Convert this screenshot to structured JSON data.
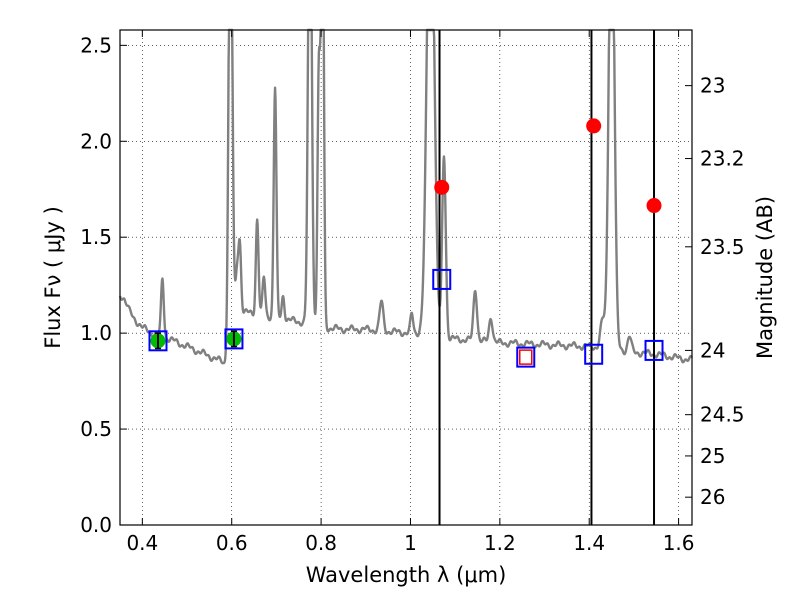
{
  "chart_data": {
    "type": "scatter",
    "xlabel": "Wavelength  λ (μm)",
    "ylabel": "Flux  Fν  ( μJy )",
    "y2label": "Magnitude (AB)",
    "xlim": [
      0.35,
      1.63
    ],
    "ylim": [
      0.0,
      2.58
    ],
    "grid": true,
    "x_ticks": [
      0.4,
      0.6,
      0.8,
      1.0,
      1.2,
      1.4,
      1.6
    ],
    "x_tick_labels": [
      "0.4",
      "0.6",
      "0.8",
      "1",
      "1.2",
      "1.4",
      "1.6"
    ],
    "y_ticks": [
      0.0,
      0.5,
      1.0,
      1.5,
      2.0,
      2.5
    ],
    "y_tick_labels": [
      "0.0",
      "0.5",
      "1.0",
      "1.5",
      "2.0",
      "2.5"
    ],
    "y2_ticks": [
      {
        "label": "23",
        "flux": 2.29
      },
      {
        "label": "23.2",
        "flux": 1.91
      },
      {
        "label": "23.5",
        "flux": 1.45
      },
      {
        "label": "24",
        "flux": 0.91
      },
      {
        "label": "24.5",
        "flux": 0.575
      },
      {
        "label": "25",
        "flux": 0.36
      },
      {
        "label": "26",
        "flux": 0.145
      }
    ],
    "vertical_lines": [
      1.065,
      1.405,
      1.545
    ],
    "colors": {
      "spectrum": "#808080",
      "detections": "#ff0000",
      "hst": "#00bb00",
      "model_box": "#0000ff",
      "highlight_box": "#ff0000",
      "vline": "#000000"
    },
    "series": [
      {
        "marker": "green-circle",
        "points": [
          {
            "x": 0.435,
            "y": 0.96,
            "yerr": 0.04
          },
          {
            "x": 0.605,
            "y": 0.97,
            "yerr": 0.04
          }
        ]
      },
      {
        "marker": "red-circle",
        "points": [
          {
            "x": 1.07,
            "y": 1.76
          },
          {
            "x": 1.41,
            "y": 2.08
          },
          {
            "x": 1.545,
            "y": 1.665
          }
        ]
      },
      {
        "marker": "blue-square",
        "points": [
          {
            "x": 0.435,
            "y": 0.96
          },
          {
            "x": 0.605,
            "y": 0.97
          },
          {
            "x": 1.07,
            "y": 1.28
          },
          {
            "x": 1.41,
            "y": 0.89
          },
          {
            "x": 1.545,
            "y": 0.91
          }
        ]
      },
      {
        "marker": "red-square-in-blue",
        "points": [
          {
            "x": 1.258,
            "y": 0.875
          }
        ]
      }
    ],
    "spectrum": {
      "continuum": [
        [
          0.35,
          1.2
        ],
        [
          0.36,
          1.18
        ],
        [
          0.37,
          1.12
        ],
        [
          0.38,
          1.08
        ],
        [
          0.4,
          1.03
        ],
        [
          0.42,
          1.0
        ],
        [
          0.45,
          0.98
        ],
        [
          0.5,
          0.93
        ],
        [
          0.55,
          0.88
        ],
        [
          0.58,
          0.85
        ],
        [
          0.59,
          0.82
        ],
        [
          0.595,
          0.86
        ],
        [
          0.6,
          1.1
        ],
        [
          0.61,
          1.12
        ],
        [
          0.65,
          1.1
        ],
        [
          0.7,
          1.08
        ],
        [
          0.75,
          1.06
        ],
        [
          0.77,
          1.05
        ],
        [
          0.8,
          1.03
        ],
        [
          0.85,
          1.02
        ],
        [
          0.9,
          1.02
        ],
        [
          0.95,
          1.01
        ],
        [
          1.0,
          1.0
        ],
        [
          1.03,
          1.0
        ],
        [
          1.06,
          0.98
        ],
        [
          1.1,
          0.97
        ],
        [
          1.2,
          0.95
        ],
        [
          1.3,
          0.94
        ],
        [
          1.4,
          0.93
        ],
        [
          1.45,
          0.92
        ],
        [
          1.5,
          0.9
        ],
        [
          1.55,
          0.89
        ],
        [
          1.6,
          0.87
        ],
        [
          1.63,
          0.86
        ]
      ],
      "lines": [
        {
          "x": 0.445,
          "w": 0.003,
          "h": 0.3
        },
        {
          "x": 0.597,
          "w": 0.004,
          "h": 2.6
        },
        {
          "x": 0.612,
          "w": 0.003,
          "h": 0.2
        },
        {
          "x": 0.618,
          "w": 0.003,
          "h": 0.35
        },
        {
          "x": 0.657,
          "w": 0.003,
          "h": 0.5
        },
        {
          "x": 0.672,
          "w": 0.003,
          "h": 0.2
        },
        {
          "x": 0.697,
          "w": 0.003,
          "h": 1.2
        },
        {
          "x": 0.715,
          "w": 0.003,
          "h": 0.12
        },
        {
          "x": 0.775,
          "w": 0.004,
          "h": 2.6
        },
        {
          "x": 0.795,
          "w": 0.003,
          "h": 1.35
        },
        {
          "x": 0.803,
          "w": 0.003,
          "h": 2.6
        },
        {
          "x": 0.935,
          "w": 0.004,
          "h": 0.15
        },
        {
          "x": 1.003,
          "w": 0.003,
          "h": 0.1
        },
        {
          "x": 1.045,
          "w": 0.008,
          "h": 2.6
        },
        {
          "x": 1.075,
          "w": 0.004,
          "h": 0.95
        },
        {
          "x": 1.145,
          "w": 0.004,
          "h": 0.27
        },
        {
          "x": 1.18,
          "w": 0.004,
          "h": 0.13
        },
        {
          "x": 1.43,
          "w": 0.005,
          "h": 0.14
        },
        {
          "x": 1.45,
          "w": 0.006,
          "h": 2.6
        },
        {
          "x": 1.49,
          "w": 0.004,
          "h": 0.08
        }
      ]
    }
  }
}
